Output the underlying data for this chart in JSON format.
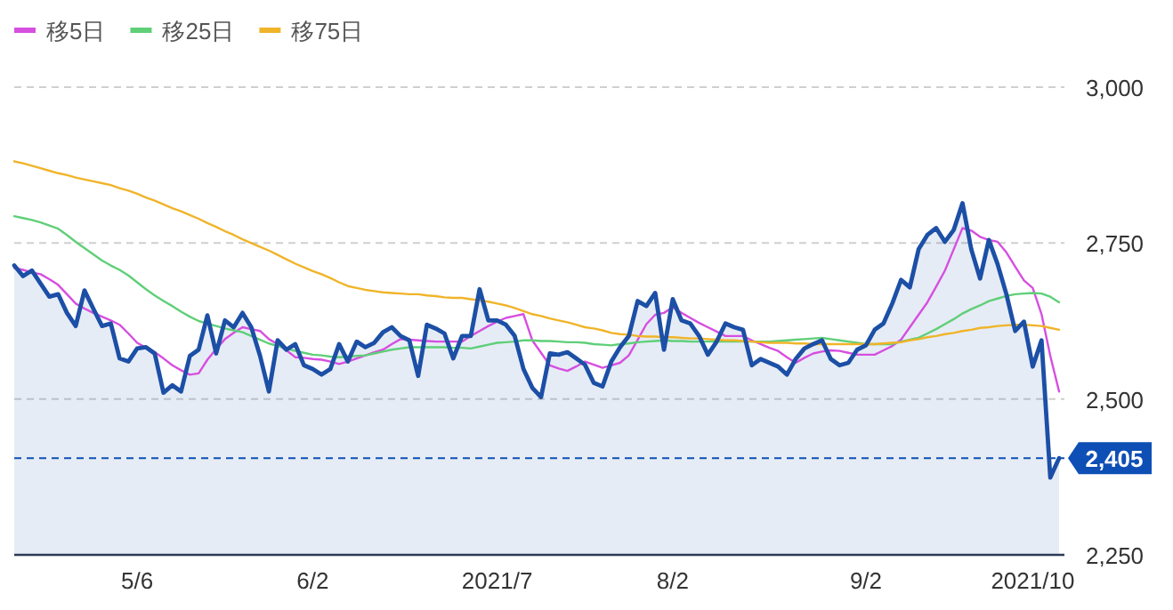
{
  "chart_data": {
    "type": "line",
    "categories": [
      null,
      null,
      null,
      null,
      null,
      null,
      null,
      null,
      null,
      null,
      null,
      null,
      null,
      null,
      "5/6",
      null,
      null,
      null,
      null,
      null,
      null,
      null,
      null,
      null,
      null,
      null,
      null,
      null,
      null,
      null,
      null,
      null,
      null,
      null,
      "6/2",
      null,
      null,
      null,
      null,
      null,
      null,
      null,
      null,
      null,
      null,
      null,
      null,
      null,
      null,
      null,
      null,
      null,
      null,
      null,
      null,
      "2021/7",
      null,
      null,
      null,
      null,
      null,
      null,
      null,
      null,
      null,
      null,
      null,
      null,
      null,
      null,
      null,
      null,
      null,
      null,
      null,
      "8/2",
      null,
      null,
      null,
      null,
      null,
      null,
      null,
      null,
      null,
      null,
      null,
      null,
      null,
      null,
      null,
      null,
      null,
      null,
      null,
      null,
      null,
      "9/2",
      null,
      null,
      null,
      null,
      null,
      null,
      null,
      null,
      null,
      null,
      null,
      null,
      null,
      null,
      null,
      null,
      null,
      null,
      "2021/10",
      null,
      null,
      null
    ],
    "series": [
      {
        "type": "area",
        "color": "#1c4fa6",
        "values": [
          2714,
          2697,
          2706,
          2685,
          2664,
          2668,
          2638,
          2617,
          2674,
          2645,
          2617,
          2621,
          2565,
          2560,
          2581,
          2583,
          2573,
          2510,
          2522,
          2512,
          2569,
          2579,
          2634,
          2573,
          2626,
          2615,
          2638,
          2615,
          2569,
          2512,
          2594,
          2579,
          2588,
          2554,
          2548,
          2539,
          2548,
          2588,
          2560,
          2592,
          2583,
          2590,
          2607,
          2615,
          2601,
          2594,
          2537,
          2619,
          2613,
          2605,
          2565,
          2601,
          2601,
          2676,
          2626,
          2626,
          2619,
          2601,
          2548,
          2518,
          2503,
          2573,
          2571,
          2575,
          2565,
          2555,
          2526,
          2520,
          2560,
          2583,
          2601,
          2657,
          2649,
          2670,
          2579,
          2660,
          2626,
          2621,
          2601,
          2571,
          2592,
          2621,
          2615,
          2611,
          2554,
          2564,
          2558,
          2552,
          2539,
          2564,
          2581,
          2588,
          2594,
          2564,
          2554,
          2558,
          2579,
          2586,
          2611,
          2621,
          2653,
          2691,
          2679,
          2740,
          2763,
          2774,
          2752,
          2771,
          2814,
          2740,
          2693,
          2755,
          2716,
          2668,
          2609,
          2624,
          2552,
          2594,
          2374,
          2405
        ]
      },
      {
        "type": "line",
        "name": "移5日",
        "color": "#d64fe0",
        "values": [
          2710,
          2707,
          2703,
          2700,
          2692,
          2683,
          2668,
          2653,
          2645,
          2638,
          2632,
          2626,
          2619,
          2605,
          2590,
          2582,
          2575,
          2565,
          2554,
          2546,
          2539,
          2541,
          2563,
          2580,
          2596,
          2606,
          2615,
          2612,
          2609,
          2596,
          2588,
          2578,
          2567,
          2566,
          2564,
          2563,
          2560,
          2556,
          2560,
          2565,
          2570,
          2575,
          2579,
          2588,
          2596,
          2595,
          2594,
          2593,
          2592,
          2592,
          2592,
          2592,
          2601,
          2609,
          2617,
          2624,
          2630,
          2633,
          2636,
          2594,
          2574,
          2554,
          2549,
          2545,
          2552,
          2560,
          2555,
          2550,
          2554,
          2558,
          2570,
          2595,
          2620,
          2635,
          2638,
          2647,
          2638,
          2630,
          2622,
          2615,
          2608,
          2601,
          2601,
          2601,
          2594,
          2588,
          2582,
          2577,
          2567,
          2558,
          2566,
          2573,
          2576,
          2578,
          2577,
          2574,
          2571,
          2571,
          2571,
          2578,
          2585,
          2595,
          2615,
          2635,
          2655,
          2680,
          2706,
          2740,
          2774,
          2770,
          2760,
          2755,
          2752,
          2735,
          2712,
          2690,
          2678,
          2636,
          2569,
          2512
        ]
      },
      {
        "type": "line",
        "name": "移25日",
        "color": "#5fcf78",
        "values": [
          2793,
          2790,
          2787,
          2783,
          2778,
          2773,
          2763,
          2752,
          2742,
          2732,
          2722,
          2714,
          2707,
          2698,
          2687,
          2676,
          2666,
          2657,
          2649,
          2640,
          2632,
          2625,
          2621,
          2617,
          2613,
          2610,
          2607,
          2601,
          2595,
          2589,
          2585,
          2581,
          2577,
          2574,
          2571,
          2570,
          2568,
          2567,
          2568,
          2569,
          2570,
          2573,
          2576,
          2579,
          2581,
          2583,
          2583,
          2583,
          2583,
          2583,
          2582,
          2582,
          2581,
          2584,
          2587,
          2590,
          2591,
          2592,
          2594,
          2594,
          2593,
          2593,
          2592,
          2591,
          2591,
          2590,
          2588,
          2587,
          2586,
          2588,
          2589,
          2591,
          2592,
          2593,
          2594,
          2593,
          2593,
          2592,
          2592,
          2592,
          2592,
          2592,
          2592,
          2592,
          2592,
          2592,
          2592,
          2593,
          2594,
          2595,
          2596,
          2597,
          2598,
          2596,
          2594,
          2592,
          2590,
          2588,
          2588,
          2588,
          2588,
          2592,
          2595,
          2598,
          2605,
          2612,
          2620,
          2628,
          2637,
          2644,
          2650,
          2657,
          2661,
          2665,
          2668,
          2669,
          2670,
          2669,
          2664,
          2655
        ]
      },
      {
        "type": "line",
        "name": "移75日",
        "color": "#f0b429",
        "values": [
          2881,
          2878,
          2874,
          2870,
          2866,
          2862,
          2859,
          2855,
          2852,
          2849,
          2846,
          2843,
          2838,
          2834,
          2829,
          2823,
          2818,
          2812,
          2806,
          2801,
          2795,
          2789,
          2782,
          2776,
          2769,
          2763,
          2756,
          2750,
          2744,
          2738,
          2731,
          2724,
          2717,
          2711,
          2705,
          2700,
          2694,
          2687,
          2681,
          2678,
          2675,
          2673,
          2671,
          2670,
          2669,
          2668,
          2668,
          2666,
          2665,
          2663,
          2662,
          2662,
          2660,
          2658,
          2656,
          2653,
          2650,
          2646,
          2641,
          2636,
          2633,
          2629,
          2626,
          2623,
          2619,
          2615,
          2613,
          2610,
          2606,
          2604,
          2603,
          2601,
          2600,
          2600,
          2599,
          2599,
          2598,
          2597,
          2597,
          2596,
          2595,
          2594,
          2594,
          2593,
          2592,
          2591,
          2590,
          2590,
          2590,
          2589,
          2589,
          2588,
          2588,
          2588,
          2588,
          2588,
          2588,
          2588,
          2588,
          2589,
          2590,
          2591,
          2594,
          2596,
          2599,
          2601,
          2604,
          2606,
          2609,
          2611,
          2614,
          2615,
          2617,
          2618,
          2619,
          2619,
          2618,
          2617,
          2614,
          2611
        ]
      }
    ],
    "ylim": [
      2250,
      3000
    ],
    "yticks": [
      {
        "value": 2250,
        "label": "2,250"
      },
      {
        "value": 2500,
        "label": "2,500"
      },
      {
        "value": 2750,
        "label": "2,750"
      },
      {
        "value": 3000,
        "label": "3,000"
      }
    ],
    "ref_lines": [
      {
        "axis": "y",
        "value": 2405,
        "label": "2,405",
        "color": "#0d4fb5",
        "line_style": "dashed"
      }
    ],
    "grid": "y",
    "legend": "top left"
  }
}
